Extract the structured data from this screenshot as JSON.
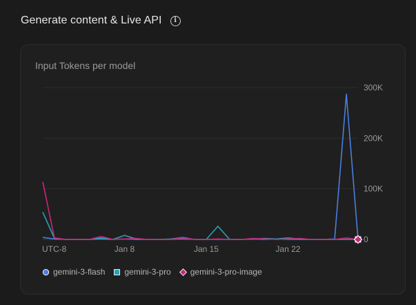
{
  "header": {
    "title": "Generate content & Live API",
    "info_icon": "info-icon"
  },
  "chart_data": {
    "type": "line",
    "title": "Input Tokens per model",
    "xlabel": "",
    "ylabel": "",
    "ylim": [
      0,
      300000
    ],
    "y_ticks": [
      "0",
      "100K",
      "200K",
      "300K"
    ],
    "y_tick_values": [
      0,
      100000,
      200000,
      300000
    ],
    "x_tick_labels": [
      "UTC-8",
      "Jan 8",
      "Jan 15",
      "Jan 22"
    ],
    "x_tick_indices": [
      0,
      7,
      14,
      21
    ],
    "x": [
      "Jan 1",
      "Jan 2",
      "Jan 3",
      "Jan 4",
      "Jan 5",
      "Jan 6",
      "Jan 7",
      "Jan 8",
      "Jan 9",
      "Jan 10",
      "Jan 11",
      "Jan 12",
      "Jan 13",
      "Jan 14",
      "Jan 15",
      "Jan 16",
      "Jan 17",
      "Jan 18",
      "Jan 19",
      "Jan 20",
      "Jan 21",
      "Jan 22",
      "Jan 23",
      "Jan 24",
      "Jan 25",
      "Jan 26",
      "Jan 27",
      "Jan 28"
    ],
    "grid": true,
    "legend_position": "bottom-left",
    "series": [
      {
        "name": "gemini-3-flash",
        "color": "#4a7fe0",
        "marker": "circle",
        "values": [
          4000,
          1000,
          0,
          0,
          0,
          1000,
          0,
          1000,
          0,
          0,
          0,
          0,
          1000,
          0,
          0,
          0,
          0,
          0,
          1000,
          0,
          1000,
          0,
          0,
          0,
          0,
          1000,
          287000,
          0
        ]
      },
      {
        "name": "gemini-3-pro",
        "color": "#26a3b5",
        "marker": "square",
        "values": [
          54000,
          2000,
          0,
          0,
          0,
          3000,
          0,
          8000,
          1000,
          0,
          0,
          1000,
          4000,
          0,
          0,
          26000,
          0,
          0,
          1000,
          2000,
          1000,
          3000,
          1000,
          0,
          0,
          0,
          0,
          0
        ]
      },
      {
        "name": "gemini-3-pro-image",
        "color": "#c9287a",
        "marker": "diamond",
        "values": [
          114000,
          3000,
          0,
          0,
          0,
          6000,
          0,
          1000,
          2000,
          0,
          0,
          0,
          3000,
          0,
          0,
          1000,
          0,
          0,
          2000,
          1000,
          0,
          1000,
          2000,
          0,
          0,
          0,
          3000,
          0
        ]
      }
    ]
  }
}
